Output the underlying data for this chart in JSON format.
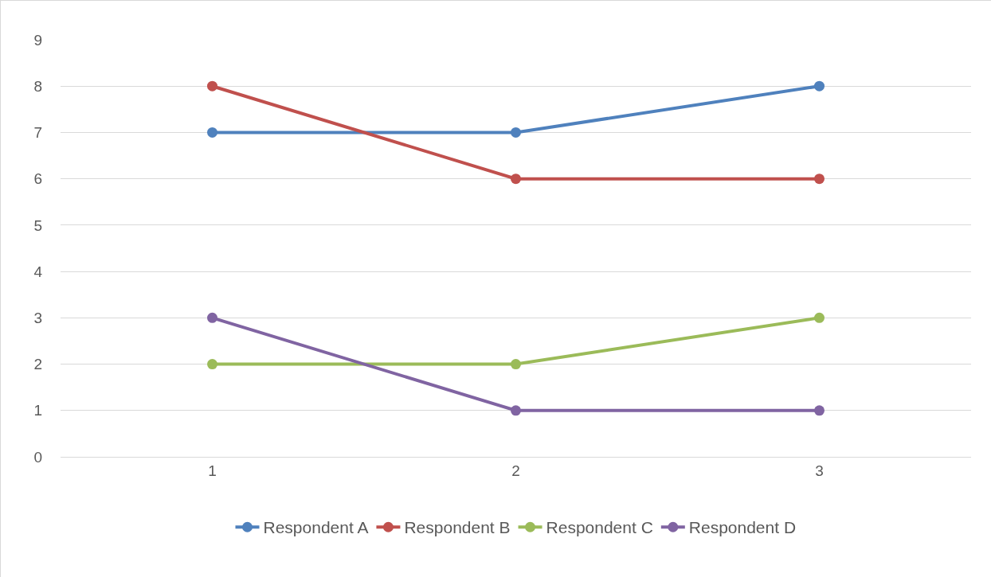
{
  "chart_data": {
    "type": "line",
    "categories": [
      "1",
      "2",
      "3"
    ],
    "series": [
      {
        "name": "Respondent A",
        "color": "#4f81bd",
        "values": [
          7,
          7,
          8
        ]
      },
      {
        "name": "Respondent B",
        "color": "#c0504d",
        "values": [
          8,
          6,
          6
        ]
      },
      {
        "name": "Respondent C",
        "color": "#9bbb59",
        "values": [
          2,
          2,
          3
        ]
      },
      {
        "name": "Respondent D",
        "color": "#8064a2",
        "values": [
          3,
          1,
          1
        ]
      }
    ],
    "ylim": [
      0,
      9
    ],
    "yticks": [
      0,
      1,
      2,
      3,
      4,
      5,
      6,
      7,
      8,
      9
    ],
    "grid": "y",
    "legend": "bottom",
    "marker": "circle",
    "line_style": "solid"
  }
}
